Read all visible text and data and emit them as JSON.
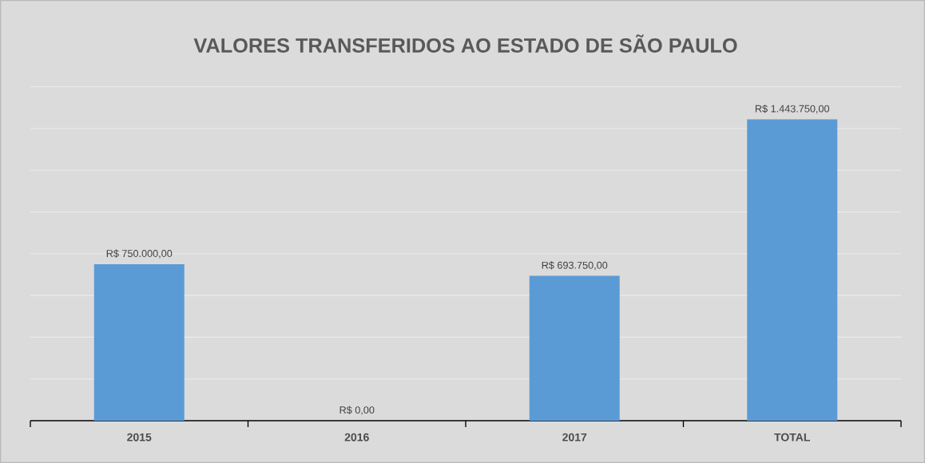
{
  "chart_data": {
    "type": "bar",
    "title": "VALORES TRANSFERIDOS AO ESTADO DE SÃO PAULO",
    "categories": [
      "2015",
      "2016",
      "2017",
      "TOTAL"
    ],
    "values": [
      750000,
      0,
      693750,
      1443750
    ],
    "value_labels": [
      "R$ 750.000,00",
      "R$ 0,00",
      "R$ 693.750,00",
      "R$ 1.443.750,00"
    ],
    "color": "#5b9bd5",
    "grid": "y"
  }
}
